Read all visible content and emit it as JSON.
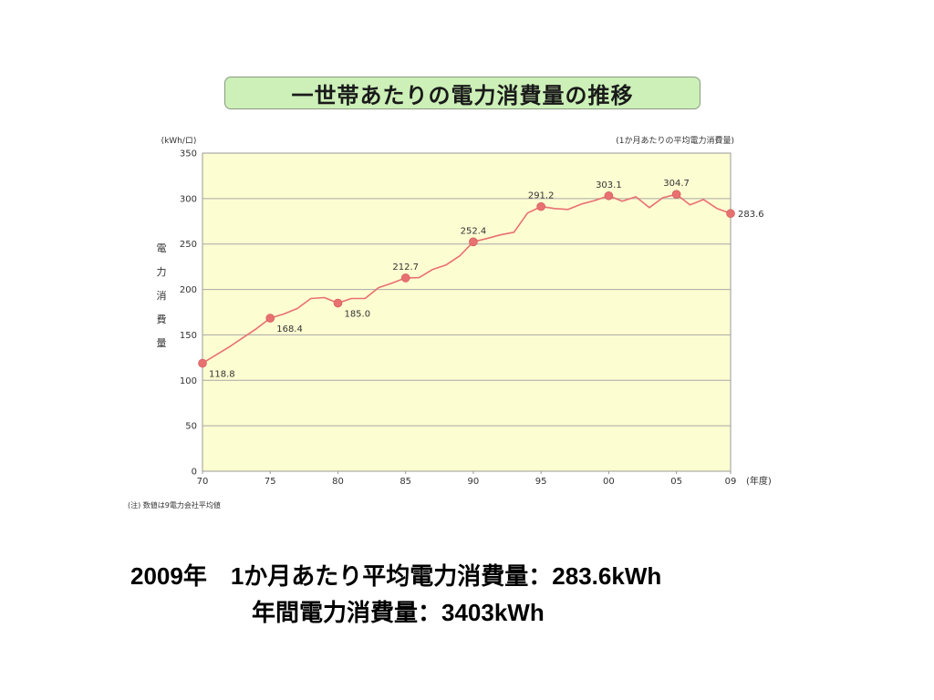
{
  "chart_data": {
    "type": "line",
    "title": "一世帯あたりの電力消費量の推移",
    "y_unit": "(kWh/ロ)",
    "ylabel": "電力消費量",
    "subtitle": "(1か月あたりの平均電力消費量)",
    "x_unit": "(年度)",
    "note": "(注) 数値は9電力会社平均値",
    "ylim": [
      0,
      350
    ],
    "y_ticks": [
      0,
      50,
      100,
      150,
      200,
      250,
      300,
      350
    ],
    "x_range": [
      1970,
      2009
    ],
    "x_ticks": [
      {
        "year": 1970,
        "label": "70"
      },
      {
        "year": 1975,
        "label": "75"
      },
      {
        "year": 1980,
        "label": "80"
      },
      {
        "year": 1985,
        "label": "85"
      },
      {
        "year": 1990,
        "label": "90"
      },
      {
        "year": 1995,
        "label": "95"
      },
      {
        "year": 2000,
        "label": "00"
      },
      {
        "year": 2005,
        "label": "05"
      },
      {
        "year": 2009,
        "label": "09"
      }
    ],
    "grid": true,
    "line_color": "#e87070",
    "plot_background": "#fdfdd2",
    "series": [
      {
        "x": [
          1970,
          1971,
          1972,
          1973,
          1974,
          1975,
          1976,
          1977,
          1978,
          1979,
          1980,
          1981,
          1982,
          1983,
          1984,
          1985,
          1986,
          1987,
          1988,
          1989,
          1990,
          1991,
          1992,
          1993,
          1994,
          1995,
          1996,
          1997,
          1998,
          1999,
          2000,
          2001,
          2002,
          2003,
          2004,
          2005,
          2006,
          2007,
          2008,
          2009
        ],
        "values": [
          118.8,
          128,
          137,
          147,
          157,
          168.4,
          173,
          179,
          190,
          191,
          185.0,
          190,
          190,
          202,
          207,
          212.7,
          213,
          222,
          227,
          237,
          252.4,
          256,
          260,
          263,
          284,
          291.2,
          289,
          288,
          294,
          298,
          303.1,
          297,
          302,
          290,
          301,
          304.7,
          293,
          299,
          289,
          283.6
        ]
      }
    ],
    "labeled_points": [
      {
        "year": 1970,
        "value": 118.8,
        "label": "118.8",
        "pos": "below-right"
      },
      {
        "year": 1975,
        "value": 168.4,
        "label": "168.4",
        "pos": "below-right"
      },
      {
        "year": 1980,
        "value": 185.0,
        "label": "185.0",
        "pos": "below-right"
      },
      {
        "year": 1985,
        "value": 212.7,
        "label": "212.7",
        "pos": "above"
      },
      {
        "year": 1990,
        "value": 252.4,
        "label": "252.4",
        "pos": "above"
      },
      {
        "year": 1995,
        "value": 291.2,
        "label": "291.2",
        "pos": "above"
      },
      {
        "year": 2000,
        "value": 303.1,
        "label": "303.1",
        "pos": "above"
      },
      {
        "year": 2005,
        "value": 304.7,
        "label": "304.7",
        "pos": "above"
      },
      {
        "year": 2009,
        "value": 283.6,
        "label": "283.6",
        "pos": "right"
      }
    ]
  },
  "summary": {
    "line1": "2009年　1か月あたり平均電力消費量：283.6kWh",
    "line2": "年間電力消費量：3403kWh"
  }
}
